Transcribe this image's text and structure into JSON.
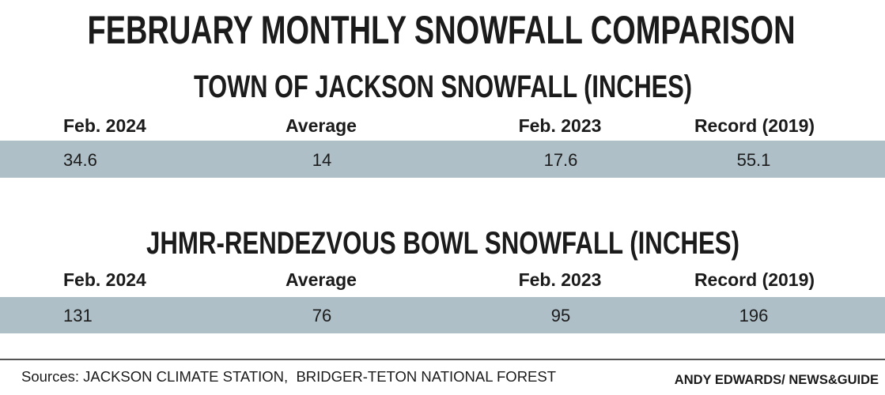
{
  "title": "FEBRUARY MONTHLY SNOWFALL COMPARISON",
  "chart_data": [
    {
      "type": "table",
      "title": "TOWN OF JACKSON SNOWFALL (INCHES)",
      "columns": [
        "Feb. 2024",
        "Average",
        "Feb. 2023",
        "Record (2019)"
      ],
      "rows": [
        [
          34.6,
          14,
          17.6,
          55.1
        ]
      ]
    },
    {
      "type": "table",
      "title": "JHMR-RENDEZVOUS BOWL SNOWFALL (INCHES)",
      "columns": [
        "Feb. 2024",
        "Average",
        "Feb. 2023",
        "Record (2019)"
      ],
      "rows": [
        [
          131,
          76,
          95,
          196
        ]
      ]
    }
  ],
  "footer": {
    "sources": "Sources: JACKSON CLIMATE STATION,  BRIDGER-TETON NATIONAL FOREST",
    "credit": "ANDY EDWARDS/ NEWS&GUIDE"
  },
  "colors": {
    "background": "#ffffff",
    "text": "#1b1b1b",
    "row_band": "#aebfc7",
    "rule": "#1b1b1b"
  }
}
